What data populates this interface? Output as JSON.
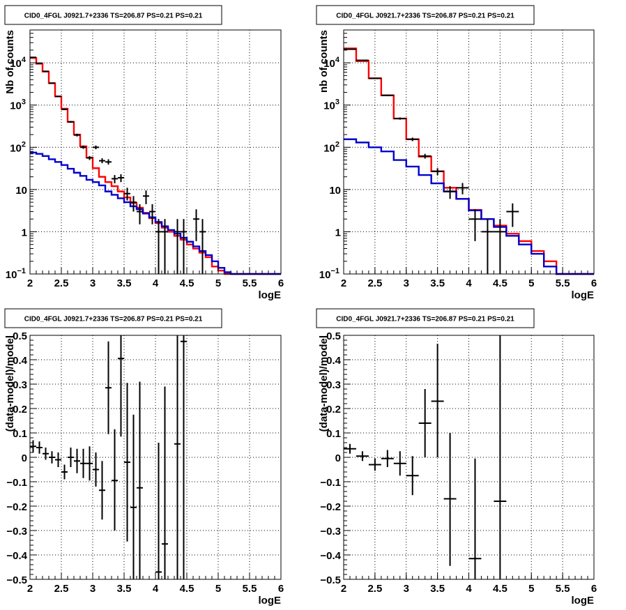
{
  "chart_data": [
    {
      "type": "line",
      "title": "CID0_4FGL J0921.7+2336 TS=206.87 PS=0.21 PS=0.21",
      "xlabel": "logE",
      "ylabel": "Nb of counts",
      "xlim": [
        2,
        6
      ],
      "ylim": [
        0.1,
        60000
      ],
      "y_scale": "log",
      "grid": true,
      "x_ticks": [
        "2",
        "2.5",
        "3",
        "3.5",
        "4",
        "4.5",
        "5",
        "5.5",
        "6"
      ],
      "y_ticks": [
        {
          "v": 0.1,
          "base": "10",
          "exp": "−1"
        },
        {
          "v": 1,
          "text": "1"
        },
        {
          "v": 10,
          "text": "10"
        },
        {
          "v": 100,
          "base": "10",
          "exp": "2"
        },
        {
          "v": 1000,
          "base": "10",
          "exp": "3"
        },
        {
          "v": 10000,
          "base": "10",
          "exp": "4"
        }
      ],
      "bin_edges": [
        2.0,
        2.1,
        2.2,
        2.3,
        2.4,
        2.5,
        2.6,
        2.7,
        2.8,
        2.9,
        3.0,
        3.1,
        3.2,
        3.3,
        3.4,
        3.5,
        3.6,
        3.7,
        3.8,
        3.9,
        4.0,
        4.1,
        4.2,
        4.3,
        4.4,
        4.5,
        4.6,
        4.7,
        4.8,
        4.9,
        5.0,
        5.1,
        5.2,
        5.3,
        5.4,
        5.5,
        5.6,
        5.7,
        5.8,
        5.9,
        6.0
      ],
      "series": [
        {
          "color": "#ff0000",
          "style": "step",
          "values": [
            13000,
            9500,
            6200,
            3300,
            1600,
            820,
            400,
            200,
            105,
            57,
            32,
            20,
            15,
            12,
            9,
            6.5,
            4.8,
            3.7,
            2.8,
            2.1,
            1.6,
            1.25,
            1.0,
            0.8,
            0.65,
            0.5,
            0.4,
            0.32,
            0.25,
            0.15,
            0.12,
            0.1,
            0.1,
            0.1,
            0.1,
            0.1,
            0.1,
            0.1,
            0.1,
            0.1
          ]
        },
        {
          "color": "#0000cc",
          "style": "step",
          "values": [
            75,
            70,
            62,
            52,
            45,
            38,
            31,
            25,
            21,
            17,
            15,
            12.5,
            9,
            7.5,
            6.2,
            5,
            4,
            3.4,
            2.7,
            2.2,
            1.7,
            1.35,
            1.1,
            0.9,
            0.72,
            0.58,
            0.45,
            0.35,
            0.28,
            0.2,
            0.14,
            0.11,
            0.1,
            0.1,
            0.1,
            0.1,
            0.1,
            0.1,
            0.1,
            0.1
          ]
        },
        {
          "color": "#000000",
          "style": "errorbars",
          "xerr": 0.05,
          "points": [
            {
              "x": 2.05,
              "y": 13500,
              "lo": 13200,
              "hi": 13800
            },
            {
              "x": 2.15,
              "y": 9800,
              "lo": 9500,
              "hi": 10100
            },
            {
              "x": 2.25,
              "y": 6300,
              "lo": 6100,
              "hi": 6500
            },
            {
              "x": 2.35,
              "y": 3300,
              "lo": 3200,
              "hi": 3400
            },
            {
              "x": 2.45,
              "y": 1600,
              "lo": 1550,
              "hi": 1650
            },
            {
              "x": 2.55,
              "y": 790,
              "lo": 760,
              "hi": 820
            },
            {
              "x": 2.65,
              "y": 400,
              "lo": 380,
              "hi": 420
            },
            {
              "x": 2.75,
              "y": 195,
              "lo": 180,
              "hi": 210
            },
            {
              "x": 2.85,
              "y": 100,
              "lo": 92,
              "hi": 110
            },
            {
              "x": 2.95,
              "y": 56,
              "lo": 50,
              "hi": 62
            },
            {
              "x": 3.05,
              "y": 100,
              "lo": 90,
              "hi": 110
            },
            {
              "x": 3.15,
              "y": 48,
              "lo": 42,
              "hi": 55
            },
            {
              "x": 3.25,
              "y": 45,
              "lo": 39,
              "hi": 52
            },
            {
              "x": 3.35,
              "y": 18,
              "lo": 14,
              "hi": 22
            },
            {
              "x": 3.45,
              "y": 19,
              "lo": 15,
              "hi": 23
            },
            {
              "x": 3.55,
              "y": 8,
              "lo": 5.5,
              "hi": 11
            },
            {
              "x": 3.65,
              "y": 5,
              "lo": 3,
              "hi": 7
            },
            {
              "x": 3.75,
              "y": 3,
              "lo": 1.5,
              "hi": 4.5
            },
            {
              "x": 3.85,
              "y": 7,
              "lo": 4.5,
              "hi": 9.5
            },
            {
              "x": 3.95,
              "y": 3,
              "lo": 1.5,
              "hi": 4.5
            },
            {
              "x": 4.05,
              "y": 1,
              "lo": 0.1,
              "hi": 2
            },
            {
              "x": 4.15,
              "y": 1,
              "lo": 0.1,
              "hi": 2
            },
            {
              "x": 4.35,
              "y": 1,
              "lo": 0.1,
              "hi": 2
            },
            {
              "x": 4.45,
              "y": 1,
              "lo": 0.1,
              "hi": 2
            },
            {
              "x": 4.65,
              "y": 2,
              "lo": 0.6,
              "hi": 3.4
            },
            {
              "x": 4.75,
              "y": 1,
              "lo": 0.1,
              "hi": 2
            }
          ]
        }
      ]
    },
    {
      "type": "line",
      "title": "CID0_4FGL J0921.7+2336 TS=206.87 PS=0.21 PS=0.21",
      "xlabel": "logE",
      "ylabel": "nb of counts",
      "xlim": [
        2,
        6
      ],
      "ylim": [
        0.1,
        60000
      ],
      "y_scale": "log",
      "grid": true,
      "x_ticks": [
        "2",
        "2.5",
        "3",
        "3.5",
        "4",
        "4.5",
        "5",
        "5.5",
        "6"
      ],
      "y_ticks": [
        {
          "v": 0.1,
          "base": "10",
          "exp": "−1"
        },
        {
          "v": 1,
          "text": "1"
        },
        {
          "v": 10,
          "text": "10"
        },
        {
          "v": 100,
          "base": "10",
          "exp": "2"
        },
        {
          "v": 1000,
          "base": "10",
          "exp": "3"
        },
        {
          "v": 10000,
          "base": "10",
          "exp": "4"
        }
      ],
      "bin_edges": [
        2.0,
        2.2,
        2.4,
        2.6,
        2.8,
        3.0,
        3.2,
        3.4,
        3.6,
        3.8,
        4.0,
        4.2,
        4.4,
        4.6,
        4.8,
        5.0,
        5.2,
        5.4,
        5.6,
        5.8,
        6.0
      ],
      "series": [
        {
          "color": "#ff0000",
          "style": "step",
          "values": [
            22000,
            11000,
            4300,
            1700,
            480,
            155,
            60,
            27,
            11,
            6,
            3.3,
            2.0,
            1.4,
            0.9,
            0.6,
            0.35,
            0.2,
            0.1,
            0.1,
            0.1
          ]
        },
        {
          "color": "#0000cc",
          "style": "step",
          "values": [
            155,
            130,
            100,
            80,
            50,
            35,
            22,
            14,
            9,
            6,
            3.2,
            2.0,
            1.3,
            0.8,
            0.5,
            0.3,
            0.15,
            0.1,
            0.1,
            0.1
          ]
        },
        {
          "color": "#000000",
          "style": "errorbars",
          "xerr": 0.1,
          "points": [
            {
              "x": 2.1,
              "y": 21000,
              "lo": 20500,
              "hi": 21500
            },
            {
              "x": 2.3,
              "y": 11500,
              "lo": 11200,
              "hi": 11800
            },
            {
              "x": 2.5,
              "y": 4300,
              "lo": 4150,
              "hi": 4450
            },
            {
              "x": 2.7,
              "y": 1700,
              "lo": 1620,
              "hi": 1780
            },
            {
              "x": 2.9,
              "y": 480,
              "lo": 450,
              "hi": 510
            },
            {
              "x": 3.1,
              "y": 155,
              "lo": 140,
              "hi": 170
            },
            {
              "x": 3.3,
              "y": 62,
              "lo": 54,
              "hi": 70
            },
            {
              "x": 3.5,
              "y": 27,
              "lo": 22,
              "hi": 32
            },
            {
              "x": 3.7,
              "y": 9,
              "lo": 6,
              "hi": 12
            },
            {
              "x": 3.9,
              "y": 11,
              "lo": 7.7,
              "hi": 14.3
            },
            {
              "x": 4.1,
              "y": 2,
              "lo": 0.6,
              "hi": 3.4
            },
            {
              "x": 4.3,
              "y": 1,
              "lo": 0.1,
              "hi": 2
            },
            {
              "x": 4.5,
              "y": 1,
              "lo": 0.1,
              "hi": 2
            },
            {
              "x": 4.7,
              "y": 3,
              "lo": 1.3,
              "hi": 4.7
            }
          ]
        }
      ]
    },
    {
      "type": "scatter",
      "title": "CID0_4FGL J0921.7+2336 TS=206.87 PS=0.21 PS=0.21",
      "xlabel": "logE",
      "ylabel": "(data-model)/model",
      "xlim": [
        2,
        6
      ],
      "ylim": [
        -0.5,
        0.5
      ],
      "y_scale": "linear",
      "grid": true,
      "x_ticks": [
        "2",
        "2.5",
        "3",
        "3.5",
        "4",
        "4.5",
        "5",
        "5.5",
        "6"
      ],
      "y_ticks": [
        {
          "v": -0.5,
          "text": "−0.5"
        },
        {
          "v": -0.4,
          "text": "−0.4"
        },
        {
          "v": -0.3,
          "text": "−0.3"
        },
        {
          "v": -0.2,
          "text": "−0.2"
        },
        {
          "v": -0.1,
          "text": "−0.1"
        },
        {
          "v": 0,
          "text": "0"
        },
        {
          "v": 0.1,
          "text": "0.1"
        },
        {
          "v": 0.2,
          "text": "0.2"
        },
        {
          "v": 0.3,
          "text": "0.3"
        },
        {
          "v": 0.4,
          "text": "0.4"
        },
        {
          "v": 0.5,
          "text": "0.5"
        }
      ],
      "series": [
        {
          "color": "#000000",
          "style": "errorbars",
          "xerr": 0.05,
          "points": [
            {
              "x": 2.05,
              "y": 0.045,
              "lo": 0.02,
              "hi": 0.07
            },
            {
              "x": 2.15,
              "y": 0.04,
              "lo": 0.015,
              "hi": 0.065
            },
            {
              "x": 2.25,
              "y": 0.015,
              "lo": -0.01,
              "hi": 0.04
            },
            {
              "x": 2.35,
              "y": 0.0,
              "lo": -0.025,
              "hi": 0.025
            },
            {
              "x": 2.45,
              "y": -0.01,
              "lo": -0.04,
              "hi": 0.02
            },
            {
              "x": 2.55,
              "y": -0.06,
              "lo": -0.09,
              "hi": -0.03
            },
            {
              "x": 2.65,
              "y": 0.0,
              "lo": -0.04,
              "hi": 0.04
            },
            {
              "x": 2.75,
              "y": -0.015,
              "lo": -0.065,
              "hi": 0.035
            },
            {
              "x": 2.85,
              "y": -0.025,
              "lo": -0.085,
              "hi": 0.035
            },
            {
              "x": 2.95,
              "y": -0.025,
              "lo": -0.095,
              "hi": 0.045
            },
            {
              "x": 3.05,
              "y": -0.05,
              "lo": -0.12,
              "hi": 0.02
            },
            {
              "x": 3.15,
              "y": -0.135,
              "lo": -0.255,
              "hi": -0.015
            },
            {
              "x": 3.25,
              "y": 0.285,
              "lo": 0.095,
              "hi": 0.475
            },
            {
              "x": 3.35,
              "y": -0.095,
              "lo": -0.3,
              "hi": 0.115
            },
            {
              "x": 3.45,
              "y": 0.405,
              "lo": 0.085,
              "hi": 0.5
            },
            {
              "x": 3.55,
              "y": -0.02,
              "lo": -0.345,
              "hi": 0.305
            },
            {
              "x": 3.65,
              "y": -0.205,
              "lo": -0.5,
              "hi": 0.175
            },
            {
              "x": 3.75,
              "y": -0.125,
              "lo": -0.5,
              "hi": 0.31
            },
            {
              "x": 4.05,
              "y": -0.47,
              "lo": -0.5,
              "hi": 0.06
            },
            {
              "x": 4.15,
              "y": -0.355,
              "lo": -0.5,
              "hi": 0.29
            },
            {
              "x": 4.35,
              "y": 0.055,
              "lo": -0.5,
              "hi": 0.5
            },
            {
              "x": 4.45,
              "y": 0.475,
              "lo": -0.5,
              "hi": 0.5
            }
          ]
        }
      ]
    },
    {
      "type": "scatter",
      "title": "CID0_4FGL J0921.7+2336 TS=206.87 PS=0.21 PS=0.21",
      "xlabel": "logE",
      "ylabel": "(data-model)/model",
      "xlim": [
        2,
        6
      ],
      "ylim": [
        -0.5,
        0.5
      ],
      "y_scale": "linear",
      "grid": true,
      "x_ticks": [
        "2",
        "2.5",
        "3",
        "3.5",
        "4",
        "4.5",
        "5",
        "5.5",
        "6"
      ],
      "y_ticks": [
        {
          "v": -0.5,
          "text": "−0.5"
        },
        {
          "v": -0.4,
          "text": "−0.4"
        },
        {
          "v": -0.3,
          "text": "−0.3"
        },
        {
          "v": -0.2,
          "text": "−0.2"
        },
        {
          "v": -0.1,
          "text": "−0.1"
        },
        {
          "v": 0,
          "text": "0"
        },
        {
          "v": 0.1,
          "text": "0.1"
        },
        {
          "v": 0.2,
          "text": "0.2"
        },
        {
          "v": 0.3,
          "text": "0.3"
        },
        {
          "v": 0.4,
          "text": "0.4"
        },
        {
          "v": 0.5,
          "text": "0.5"
        }
      ],
      "series": [
        {
          "color": "#000000",
          "style": "errorbars",
          "xerr": 0.1,
          "points": [
            {
              "x": 2.1,
              "y": 0.035,
              "lo": 0.015,
              "hi": 0.055
            },
            {
              "x": 2.3,
              "y": 0.005,
              "lo": -0.015,
              "hi": 0.025
            },
            {
              "x": 2.5,
              "y": -0.03,
              "lo": -0.055,
              "hi": -0.005
            },
            {
              "x": 2.7,
              "y": -0.005,
              "lo": -0.04,
              "hi": 0.03
            },
            {
              "x": 2.9,
              "y": -0.025,
              "lo": -0.075,
              "hi": 0.025
            },
            {
              "x": 3.1,
              "y": -0.075,
              "lo": -0.155,
              "hi": 0.005
            },
            {
              "x": 3.3,
              "y": 0.14,
              "lo": 0.0,
              "hi": 0.28
            },
            {
              "x": 3.5,
              "y": 0.23,
              "lo": 0.0,
              "hi": 0.465
            },
            {
              "x": 3.7,
              "y": -0.17,
              "lo": -0.445,
              "hi": 0.1
            },
            {
              "x": 4.1,
              "y": -0.415,
              "lo": -0.5,
              "hi": -0.005
            },
            {
              "x": 4.5,
              "y": -0.18,
              "lo": -0.5,
              "hi": 0.5
            }
          ]
        }
      ]
    }
  ]
}
